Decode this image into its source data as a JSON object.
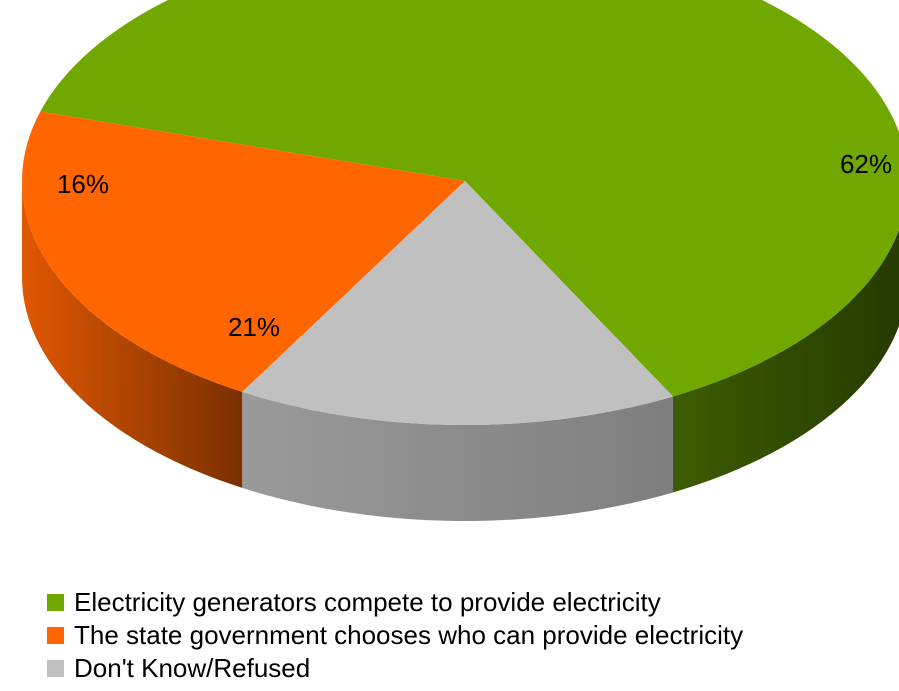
{
  "chart_data": {
    "type": "pie",
    "style": "3d",
    "title": "",
    "categories": [
      "Electricity generators compete to provide electricity",
      "The state government chooses who can provide electricity",
      "Don't Know/Refused"
    ],
    "values": [
      62,
      21,
      16
    ],
    "labels": [
      "62%",
      "21%",
      "16%"
    ],
    "colors": [
      "#70A800",
      "#FF6600",
      "#C0C0C0"
    ],
    "side_colors": [
      "#2F4800",
      "#A84200",
      "#8C8C8C"
    ],
    "legend_position": "bottom-left"
  }
}
